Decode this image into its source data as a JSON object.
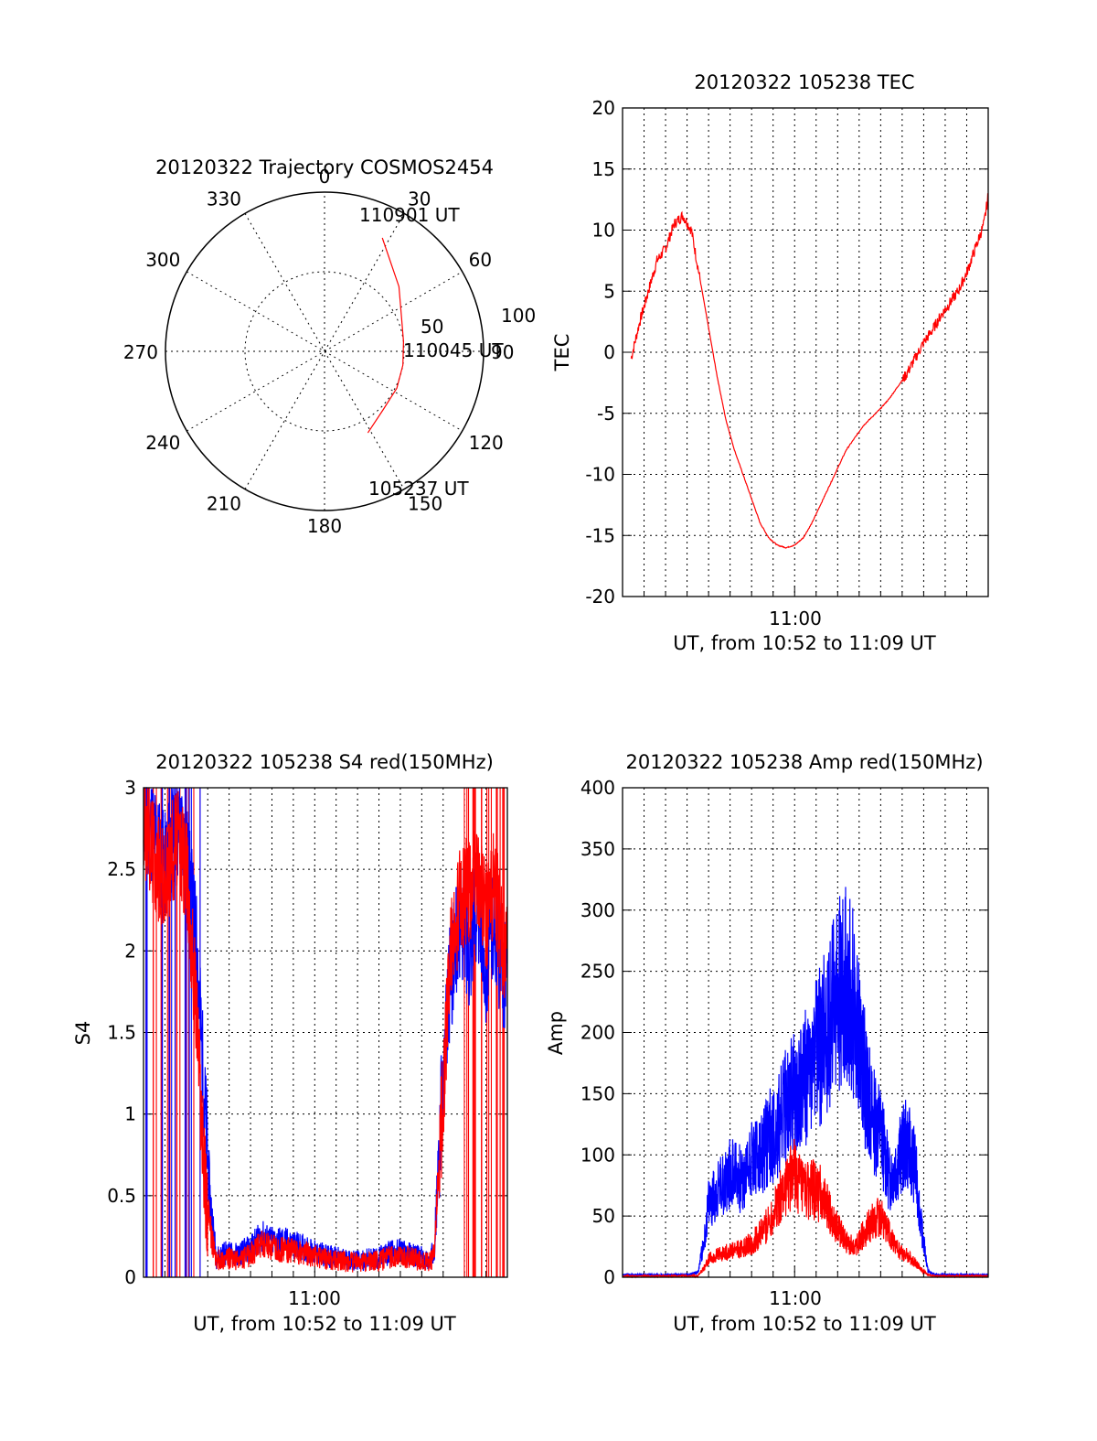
{
  "colors": {
    "red": "#ff0000",
    "blue": "#0000ff",
    "axis": "#000000"
  },
  "chart_data": [
    {
      "type": "polar",
      "title": "20120322 Trajectory COSMOS2454",
      "azimuth_labels": [
        "0",
        "30",
        "60",
        "90",
        "120",
        "150",
        "180",
        "210",
        "240",
        "270",
        "300",
        "330"
      ],
      "radial_labels": [
        "50",
        "100"
      ],
      "r_max": 100,
      "start_label": "105237 UT",
      "mid_label": "110045 UT",
      "end_label": "110901 UT",
      "series": [
        {
          "name": "trajectory",
          "color": "red",
          "points": [
            [
              152,
              58
            ],
            [
              135,
              52
            ],
            [
              117,
              51
            ],
            [
              100,
              50
            ],
            [
              83,
              50
            ],
            [
              66,
              53
            ],
            [
              49,
              62
            ],
            [
              27,
              80
            ]
          ]
        }
      ]
    },
    {
      "type": "line",
      "title": "20120322 105238 TEC",
      "ylabel": "TEC",
      "xlabel": "UT, from 10:52 to 11:09 UT",
      "x_tick_label": "11:00",
      "xlim": [
        0,
        17
      ],
      "x_tick_minutes": 8,
      "ylim": [
        -20,
        20
      ],
      "yticks": [
        "20",
        "15",
        "10",
        "5",
        "0",
        "-5",
        "-10",
        "-15",
        "-20"
      ],
      "series": [
        {
          "name": "TEC",
          "color": "red",
          "x": [
            0.4,
            0.8,
            1.2,
            1.6,
            2.0,
            2.4,
            2.8,
            3.2,
            3.6,
            4.0,
            4.4,
            4.8,
            5.2,
            5.6,
            6.0,
            6.4,
            6.8,
            7.2,
            7.6,
            8.0,
            8.4,
            8.8,
            9.2,
            9.6,
            10.0,
            10.4,
            10.8,
            11.2,
            11.6,
            12.0,
            12.4,
            12.8,
            13.2,
            13.6,
            14.0,
            14.4,
            14.8,
            15.2,
            15.6,
            16.0,
            16.4,
            16.8,
            17.0
          ],
          "y": [
            -0.5,
            2.5,
            5.0,
            7.5,
            8.5,
            10.5,
            11.2,
            10.0,
            6.0,
            2.0,
            -2.0,
            -5.5,
            -8.0,
            -10.0,
            -12.0,
            -14.0,
            -15.2,
            -15.8,
            -16.0,
            -15.8,
            -15.2,
            -14.0,
            -12.5,
            -11.0,
            -9.5,
            -8.0,
            -7.0,
            -6.0,
            -5.3,
            -4.6,
            -3.8,
            -2.8,
            -1.8,
            -0.5,
            0.8,
            1.8,
            3.0,
            4.0,
            5.0,
            6.5,
            8.5,
            10.5,
            12.8
          ]
        }
      ]
    },
    {
      "type": "line",
      "title": "20120322 105238 S4 red(150MHz)",
      "ylabel": "S4",
      "xlabel": "UT, from 10:52 to 11:09 UT",
      "x_tick_label": "11:00",
      "xlim": [
        0,
        17
      ],
      "x_tick_minutes": 8,
      "ylim": [
        0,
        3
      ],
      "yticks": [
        "3",
        "2.5",
        "2",
        "1.5",
        "1",
        "0.5",
        "0"
      ],
      "series": [
        {
          "name": "S4 blue",
          "color": "blue",
          "x": [
            0,
            0.5,
            1.0,
            1.5,
            2.0,
            2.5,
            2.8,
            3.1,
            3.4,
            3.8,
            4.4,
            5.0,
            5.5,
            6.0,
            6.5,
            7.0,
            7.5,
            8.0,
            9.0,
            10.0,
            11.0,
            11.5,
            12.0,
            12.5,
            13.0,
            13.4,
            13.6,
            13.9,
            14.3,
            14.8,
            15.2,
            15.6,
            16.0,
            16.4,
            16.8,
            17.0
          ],
          "y": [
            2.9,
            2.7,
            2.5,
            2.8,
            2.6,
            2.0,
            1.2,
            0.5,
            0.12,
            0.15,
            0.14,
            0.18,
            0.25,
            0.22,
            0.22,
            0.2,
            0.18,
            0.15,
            0.12,
            0.1,
            0.12,
            0.15,
            0.16,
            0.14,
            0.12,
            0.1,
            0.2,
            1.0,
            1.8,
            2.2,
            2.0,
            2.3,
            1.9,
            2.2,
            1.8,
            2.0
          ]
        },
        {
          "name": "S4 red",
          "color": "red",
          "x": [
            0,
            0.5,
            1.0,
            1.5,
            2.0,
            2.5,
            2.8,
            3.1,
            3.4,
            3.8,
            4.4,
            5.0,
            5.5,
            6.0,
            6.5,
            7.0,
            7.5,
            8.0,
            9.0,
            10.0,
            11.0,
            11.5,
            12.0,
            12.5,
            13.0,
            13.4,
            13.6,
            13.9,
            14.3,
            14.8,
            15.2,
            15.6,
            16.0,
            16.4,
            16.8,
            17.0
          ],
          "y": [
            2.8,
            2.6,
            2.4,
            2.7,
            2.5,
            1.6,
            0.7,
            0.3,
            0.1,
            0.12,
            0.1,
            0.14,
            0.2,
            0.18,
            0.17,
            0.16,
            0.15,
            0.13,
            0.1,
            0.09,
            0.1,
            0.12,
            0.13,
            0.12,
            0.1,
            0.09,
            0.15,
            0.9,
            1.9,
            2.3,
            2.4,
            2.5,
            2.2,
            2.4,
            2.0,
            2.1
          ]
        }
      ]
    },
    {
      "type": "line",
      "title": "20120322 105238 Amp red(150MHz)",
      "ylabel": "Amp",
      "xlabel": "UT, from 10:52 to 11:09 UT",
      "x_tick_label": "11:00",
      "xlim": [
        0,
        17
      ],
      "x_tick_minutes": 8,
      "ylim": [
        0,
        400
      ],
      "yticks": [
        "400",
        "350",
        "300",
        "250",
        "200",
        "150",
        "100",
        "50",
        "0"
      ],
      "series": [
        {
          "name": "Amp blue",
          "color": "blue",
          "x": [
            0,
            1.0,
            2.0,
            3.0,
            3.5,
            3.8,
            4.0,
            4.4,
            4.8,
            5.2,
            5.6,
            6.0,
            6.4,
            6.8,
            7.2,
            7.6,
            8.0,
            8.4,
            8.8,
            9.2,
            9.6,
            10.0,
            10.4,
            10.8,
            11.2,
            11.6,
            12.0,
            12.4,
            12.8,
            13.2,
            13.6,
            13.9,
            14.2,
            14.5,
            15.0,
            16.0,
            17.0
          ],
          "y": [
            2,
            2,
            2,
            2,
            4,
            30,
            60,
            70,
            80,
            90,
            75,
            100,
            95,
            115,
            120,
            140,
            150,
            160,
            170,
            190,
            210,
            230,
            240,
            220,
            170,
            130,
            120,
            80,
            95,
            110,
            90,
            40,
            5,
            2,
            2,
            2,
            2
          ]
        },
        {
          "name": "Amp red",
          "color": "red",
          "x": [
            0,
            1.0,
            2.0,
            3.0,
            3.5,
            3.8,
            4.0,
            4.4,
            4.8,
            5.2,
            5.6,
            6.0,
            6.4,
            6.8,
            7.2,
            7.6,
            8.0,
            8.4,
            8.8,
            9.2,
            9.6,
            10.0,
            10.4,
            10.8,
            11.2,
            11.6,
            12.0,
            12.4,
            12.8,
            13.2,
            13.6,
            13.9,
            14.2,
            14.5,
            15.0,
            16.0,
            17.0
          ],
          "y": [
            1,
            1,
            1,
            1,
            1,
            8,
            15,
            18,
            20,
            22,
            24,
            28,
            35,
            45,
            60,
            75,
            85,
            70,
            72,
            68,
            55,
            40,
            28,
            25,
            35,
            45,
            50,
            35,
            22,
            18,
            12,
            6,
            2,
            1,
            1,
            1,
            1
          ]
        }
      ]
    }
  ]
}
